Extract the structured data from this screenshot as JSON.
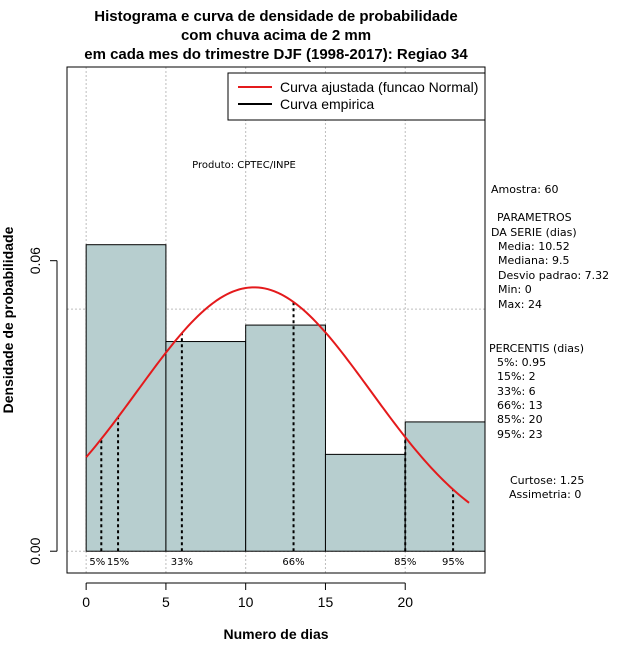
{
  "chart_data": {
    "type": "bar",
    "title_lines": [
      "Histograma e curva de densidade de probabilidade",
      "com chuva acima de 2 mm",
      "em cada mes do trimestre DJF (1998-2017): Regiao 34"
    ],
    "xlabel": "Numero de dias",
    "ylabel": "Densidade de probabilidade",
    "xlim": [
      -1.2,
      25
    ],
    "ylim": [
      -0.0045,
      0.1
    ],
    "x_ticks": [
      0,
      5,
      10,
      15,
      20
    ],
    "x_tick_labels": [
      "0",
      "5",
      "10",
      "15",
      "20"
    ],
    "y_ticks": [
      0.0,
      0.06
    ],
    "y_tick_labels": [
      "0.00",
      "0.06"
    ],
    "bins": [
      {
        "x0": 0,
        "x1": 5,
        "density": 0.0633
      },
      {
        "x0": 5,
        "x1": 10,
        "density": 0.0433
      },
      {
        "x0": 10,
        "x1": 15,
        "density": 0.0467
      },
      {
        "x0": 15,
        "x1": 20,
        "density": 0.02
      },
      {
        "x0": 20,
        "x1": 25,
        "density": 0.0267
      }
    ],
    "bar_color": "#b7cecf",
    "grid_x": [
      0,
      5,
      10,
      15,
      20,
      25
    ],
    "grid_y": [
      0.0,
      0.05,
      0.1
    ],
    "fitted_curve": {
      "name": "Curva ajustada (funcao Normal)",
      "distribution": "normal",
      "mean": 10.52,
      "sd": 7.32,
      "x_range": [
        0,
        24
      ],
      "color": "#e41a1c"
    },
    "empirical_curve": {
      "name": "Curva empirica",
      "color": "#000000"
    },
    "percentile_lines": [
      {
        "label": "5%",
        "x": 0.95
      },
      {
        "label": "15%",
        "x": 2
      },
      {
        "label": "33%",
        "x": 6
      },
      {
        "label": "66%",
        "x": 13
      },
      {
        "label": "85%",
        "x": 20
      },
      {
        "label": "95%",
        "x": 23
      }
    ],
    "product_label": "Produto: CPTEC/INPE",
    "stats": {
      "amostra": "Amostra: 60",
      "parametros_title_1": "PARAMETROS",
      "parametros_title_2": "DA SERIE (dias)",
      "parametros": [
        "Media: 10.52",
        "Mediana: 9.5",
        "Desvio padrao: 7.32",
        "Min: 0",
        "Max: 24"
      ],
      "percentis_title": "PERCENTIS (dias)",
      "percentis": [
        "5%: 0.95",
        "15%: 2",
        "33%: 6",
        "66%: 13",
        "85%: 20",
        "95%: 23"
      ],
      "curtose": "Curtose: 1.25",
      "assimetria": "Assimetria: 0"
    },
    "legend_position": "top-right"
  }
}
